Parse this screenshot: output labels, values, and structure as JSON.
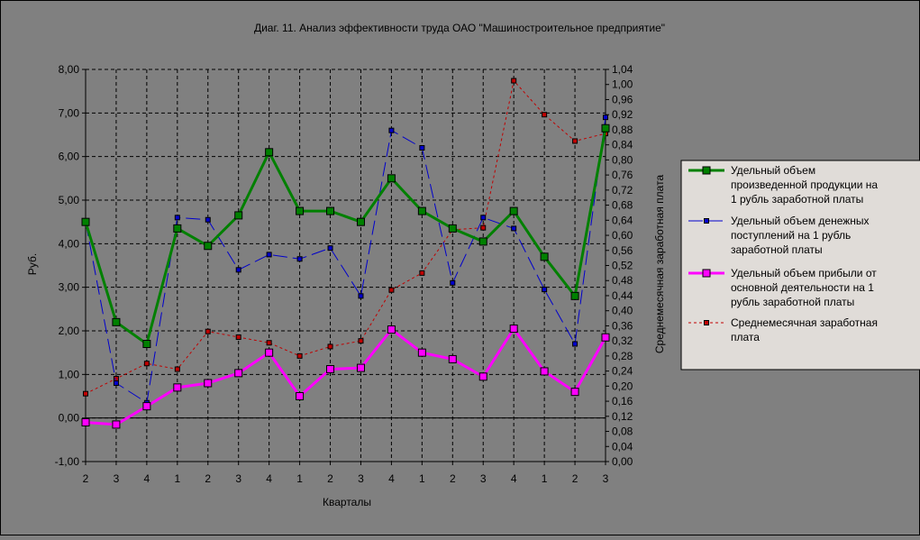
{
  "chart_data": {
    "type": "line",
    "title": "Диаг. 11. Анализ эффективности труда ОАО \"Машиностроительное предприятие\"",
    "xlabel": "Кварталы",
    "ylabel": "Руб.",
    "y2label": "Среднемесячная заработная плата",
    "categories": [
      "2",
      "3",
      "4",
      "1",
      "2",
      "3",
      "4",
      "1",
      "2",
      "3",
      "4",
      "1",
      "2",
      "3",
      "4",
      "1",
      "2",
      "3"
    ],
    "ylim": [
      -1.0,
      8.0
    ],
    "yticks": [
      "-1,00",
      "0,00",
      "1,00",
      "2,00",
      "3,00",
      "4,00",
      "5,00",
      "6,00",
      "7,00",
      "8,00"
    ],
    "y2lim": [
      0.0,
      1.04
    ],
    "y2ticks": [
      "0,00",
      "0,04",
      "0,08",
      "0,12",
      "0,16",
      "0,20",
      "0,24",
      "0,28",
      "0,32",
      "0,36",
      "0,40",
      "0,44",
      "0,48",
      "0,52",
      "0,56",
      "0,60",
      "0,64",
      "0,68",
      "0,72",
      "0,76",
      "0,80",
      "0,84",
      "0,88",
      "0,92",
      "0,96",
      "1,00",
      "1,04"
    ],
    "grid": true,
    "legend_position": "right",
    "series": [
      {
        "name": "Удельный объем произведенной продукции на 1 рубль заработной платы",
        "legend_lines": [
          "Удельный объем",
          "произведенной  продукции на",
          "1 рубль заработной платы"
        ],
        "axis": "left",
        "color": "#008000",
        "style": "thick",
        "values": [
          4.5,
          2.2,
          1.7,
          4.35,
          3.95,
          4.65,
          6.1,
          4.75,
          4.75,
          4.5,
          5.5,
          4.75,
          4.35,
          4.05,
          4.75,
          3.7,
          2.8,
          6.65
        ]
      },
      {
        "name": "Удельный объем денежных поступлений на 1 рубль заработной платы",
        "legend_lines": [
          "Удельный объем денежных",
          "поступлений на 1 рубль",
          "заработной платы"
        ],
        "axis": "left",
        "color": "#0000CC",
        "style": "dashed",
        "values": [
          4.5,
          0.8,
          0.35,
          4.6,
          4.55,
          3.4,
          3.75,
          3.65,
          3.9,
          2.8,
          6.6,
          6.2,
          3.1,
          4.6,
          4.35,
          2.95,
          1.7,
          6.9
        ]
      },
      {
        "name": "Удельный объем прибыли от основной деятельности на 1 рубль заработной платы",
        "legend_lines": [
          "Удельный объем прибыли от",
          "основной деятельности на 1",
          "рубль заработной платы"
        ],
        "axis": "left",
        "color": "#FF00FF",
        "style": "thick",
        "values": [
          -0.1,
          -0.15,
          0.27,
          0.7,
          0.8,
          1.03,
          1.5,
          0.5,
          1.12,
          1.15,
          2.03,
          1.5,
          1.35,
          0.95,
          2.05,
          1.07,
          0.6,
          1.85
        ]
      },
      {
        "name": "Среднемесячная заработная плата",
        "legend_lines": [
          "Среднемесячная заработная",
          "плата"
        ],
        "axis": "right",
        "color": "#C00000",
        "style": "dotted",
        "values": [
          0.18,
          0.22,
          0.26,
          0.245,
          0.345,
          0.33,
          0.315,
          0.28,
          0.305,
          0.32,
          0.455,
          0.5,
          0.615,
          0.62,
          1.01,
          0.92,
          0.85,
          0.87
        ]
      }
    ]
  }
}
